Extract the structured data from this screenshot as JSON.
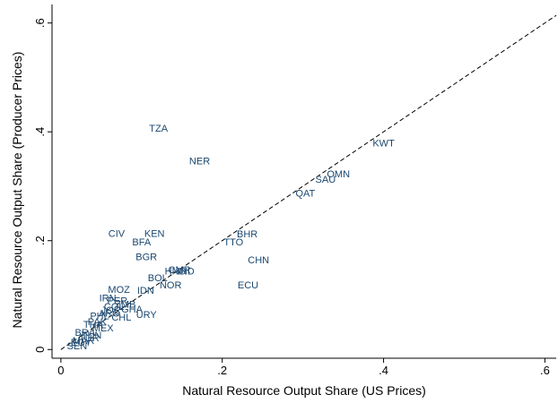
{
  "chart_data": {
    "type": "scatter",
    "x_label": "Natural Resource Output Share (US Prices)",
    "y_label": "Natural Resource Output Share (Producer Prices)",
    "labels": [
      "TZA",
      "NER",
      "KWT",
      "OMN",
      "SAU",
      "QAT",
      "CIV",
      "KEN",
      "BFA",
      "BGR",
      "BHR",
      "TTO",
      "CHN",
      "ECU",
      "NOR",
      "BOL",
      "HND",
      "CMR",
      "IND",
      "IDN",
      "MOZ",
      "URY",
      "JOR",
      "PER",
      "ZMB",
      "GHA",
      "IRN",
      "PHL",
      "THA",
      "MEX",
      "BRA",
      "TUR",
      "EGY",
      "PAK",
      "ARG",
      "CHL",
      "COL",
      "SEN",
      "MAR",
      "TUN"
    ],
    "x": [
      0.121,
      0.172,
      0.4,
      0.344,
      0.328,
      0.303,
      0.069,
      0.116,
      0.1,
      0.106,
      0.231,
      0.214,
      0.245,
      0.232,
      0.136,
      0.12,
      0.142,
      0.147,
      0.155,
      0.105,
      0.072,
      0.106,
      0.062,
      0.07,
      0.08,
      0.088,
      0.058,
      0.048,
      0.04,
      0.052,
      0.03,
      0.035,
      0.025,
      0.045,
      0.06,
      0.075,
      0.066,
      0.02,
      0.028,
      0.038
    ],
    "y": [
      0.405,
      0.345,
      0.378,
      0.321,
      0.311,
      0.286,
      0.212,
      0.212,
      0.196,
      0.169,
      0.211,
      0.196,
      0.163,
      0.117,
      0.117,
      0.13,
      0.143,
      0.145,
      0.143,
      0.107,
      0.109,
      0.063,
      0.071,
      0.088,
      0.082,
      0.073,
      0.093,
      0.06,
      0.045,
      0.038,
      0.03,
      0.02,
      0.012,
      0.05,
      0.065,
      0.058,
      0.078,
      0.005,
      0.015,
      0.025
    ],
    "xlim": [
      -0.011,
      0.614
    ],
    "ylim": [
      -0.016,
      0.634
    ],
    "xticks": [
      0,
      {
        "value": 0.2,
        "label": ".2"
      },
      {
        "value": 0.4,
        "label": ".4"
      },
      {
        "value": 0.6,
        "label": ".6"
      }
    ],
    "yticks": [
      0,
      {
        "value": 0.2,
        "label": ".2"
      },
      {
        "value": 0.4,
        "label": ".4"
      },
      {
        "value": 0.6,
        "label": ".6"
      }
    ],
    "reference_line": "dashed"
  }
}
